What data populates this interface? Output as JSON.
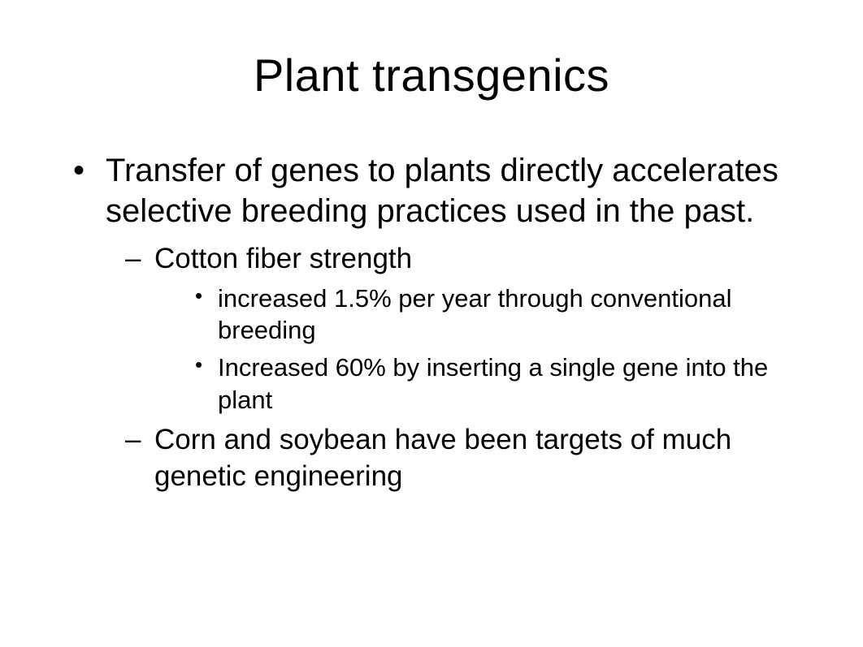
{
  "slide": {
    "title": "Plant transgenics",
    "title_fontsize": 56,
    "background_color": "#ffffff",
    "text_color": "#000000",
    "font_family": "Arial",
    "bullets": {
      "level1": [
        {
          "text": "Transfer of genes to plants directly accelerates selective breeding practices used in the past.",
          "fontsize": 40,
          "marker": "•"
        }
      ],
      "level2": [
        {
          "text": "Cotton fiber strength",
          "fontsize": 35,
          "marker": "–"
        },
        {
          "text": "Corn and soybean have been targets of much genetic engineering",
          "fontsize": 35,
          "marker": "–"
        }
      ],
      "level3": [
        {
          "text": "increased 1.5% per year through conventional breeding",
          "fontsize": 31,
          "marker": "•"
        },
        {
          "text": "Increased 60% by inserting a single gene into the plant",
          "fontsize": 31,
          "marker": "•"
        }
      ]
    }
  }
}
